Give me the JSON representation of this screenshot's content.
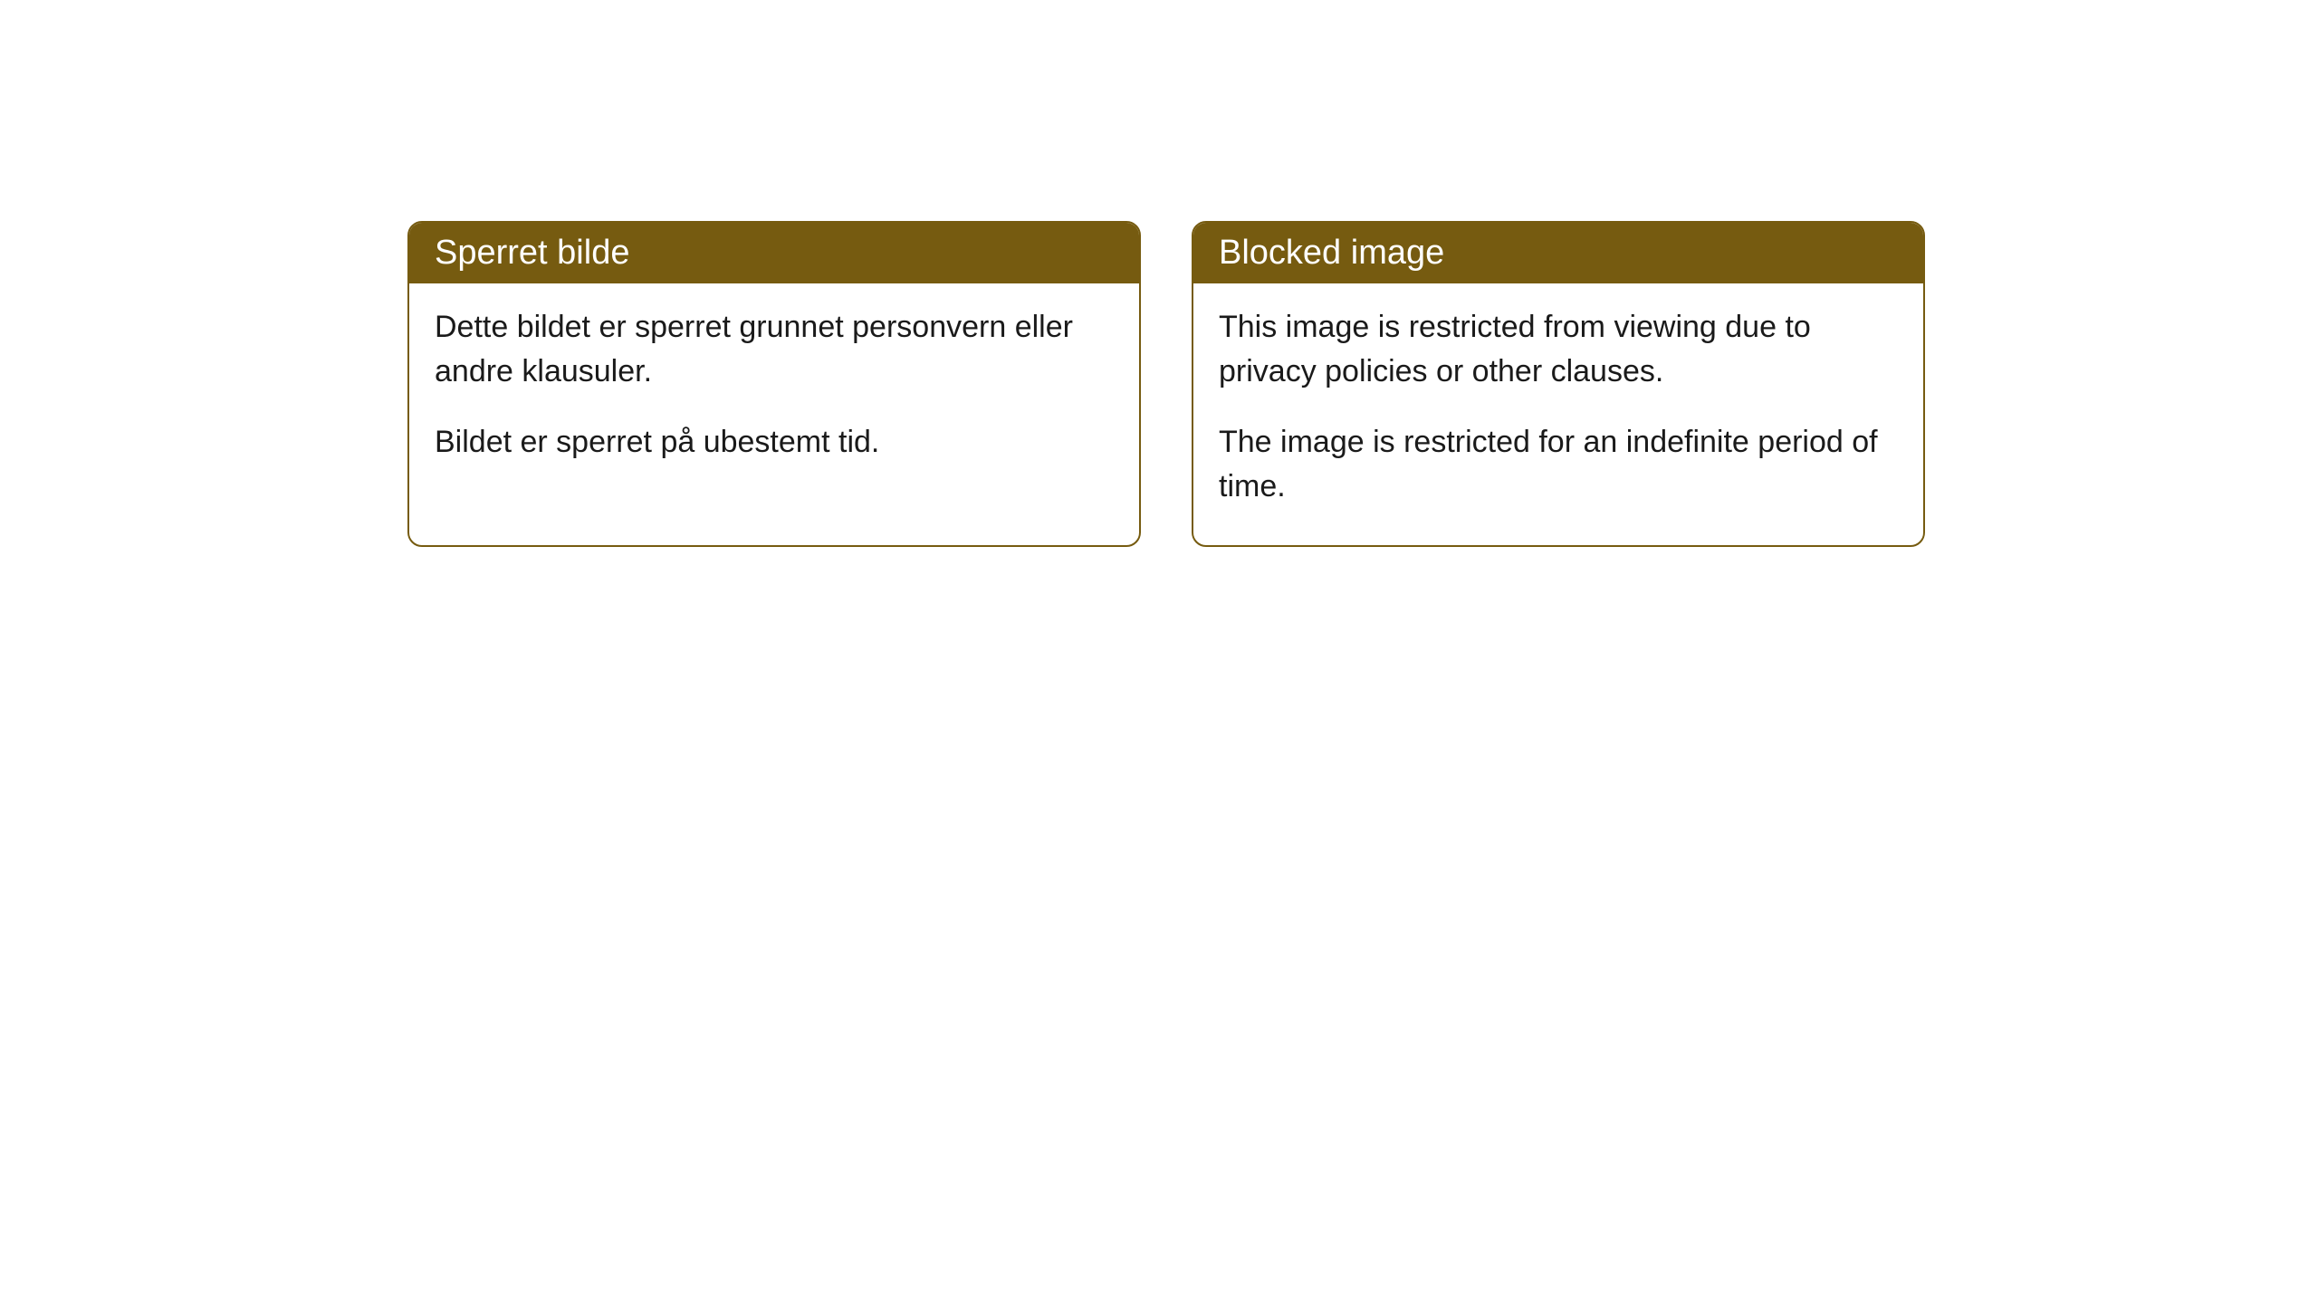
{
  "cards": [
    {
      "title": "Sperret bilde",
      "paragraph1": "Dette bildet er sperret grunnet personvern eller andre klausuler.",
      "paragraph2": "Bildet er sperret på ubestemt tid."
    },
    {
      "title": "Blocked image",
      "paragraph1": "This image is restricted from viewing due to privacy policies or other clauses.",
      "paragraph2": "The image is restricted for an indefinite period of time."
    }
  ],
  "style": {
    "header_bg_color": "#765b10",
    "header_text_color": "#ffffff",
    "border_color": "#765b10",
    "body_text_color": "#1a1a1a",
    "background_color": "#ffffff",
    "border_radius": 16,
    "header_fontsize": 38,
    "body_fontsize": 34
  }
}
